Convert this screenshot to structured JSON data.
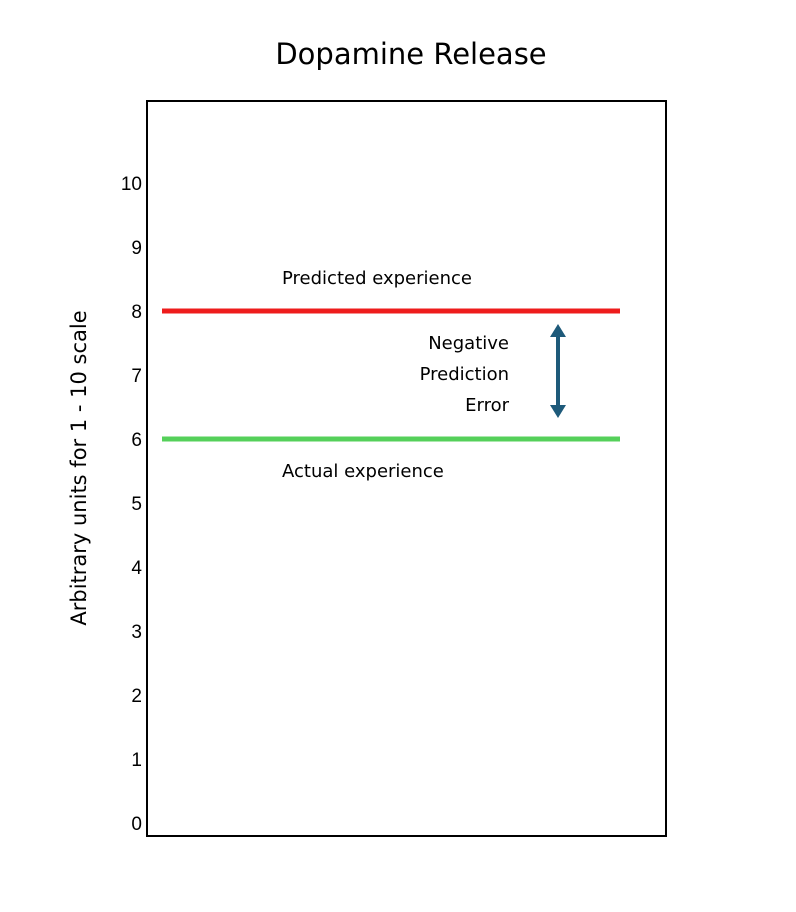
{
  "chart_data": {
    "type": "line",
    "title": "Dopamine Release",
    "ylabel": "Arbitrary units for 1 - 10 scale",
    "xlabel": "",
    "ylim": [
      0,
      11
    ],
    "yticks": [
      0,
      1,
      2,
      3,
      4,
      5,
      6,
      7,
      8,
      9,
      10
    ],
    "grid": false,
    "legend": "none",
    "series": [
      {
        "name": "Predicted experience",
        "y": 8,
        "color": "#ee1c1c"
      },
      {
        "name": "Actual experience",
        "y": 6,
        "color": "#55d05a"
      }
    ],
    "annotations": {
      "prediction_error": {
        "lines": [
          "Negative",
          "Prediction",
          "Error"
        ],
        "from": 8,
        "to": 6,
        "color": "#1e5a7a"
      }
    }
  }
}
